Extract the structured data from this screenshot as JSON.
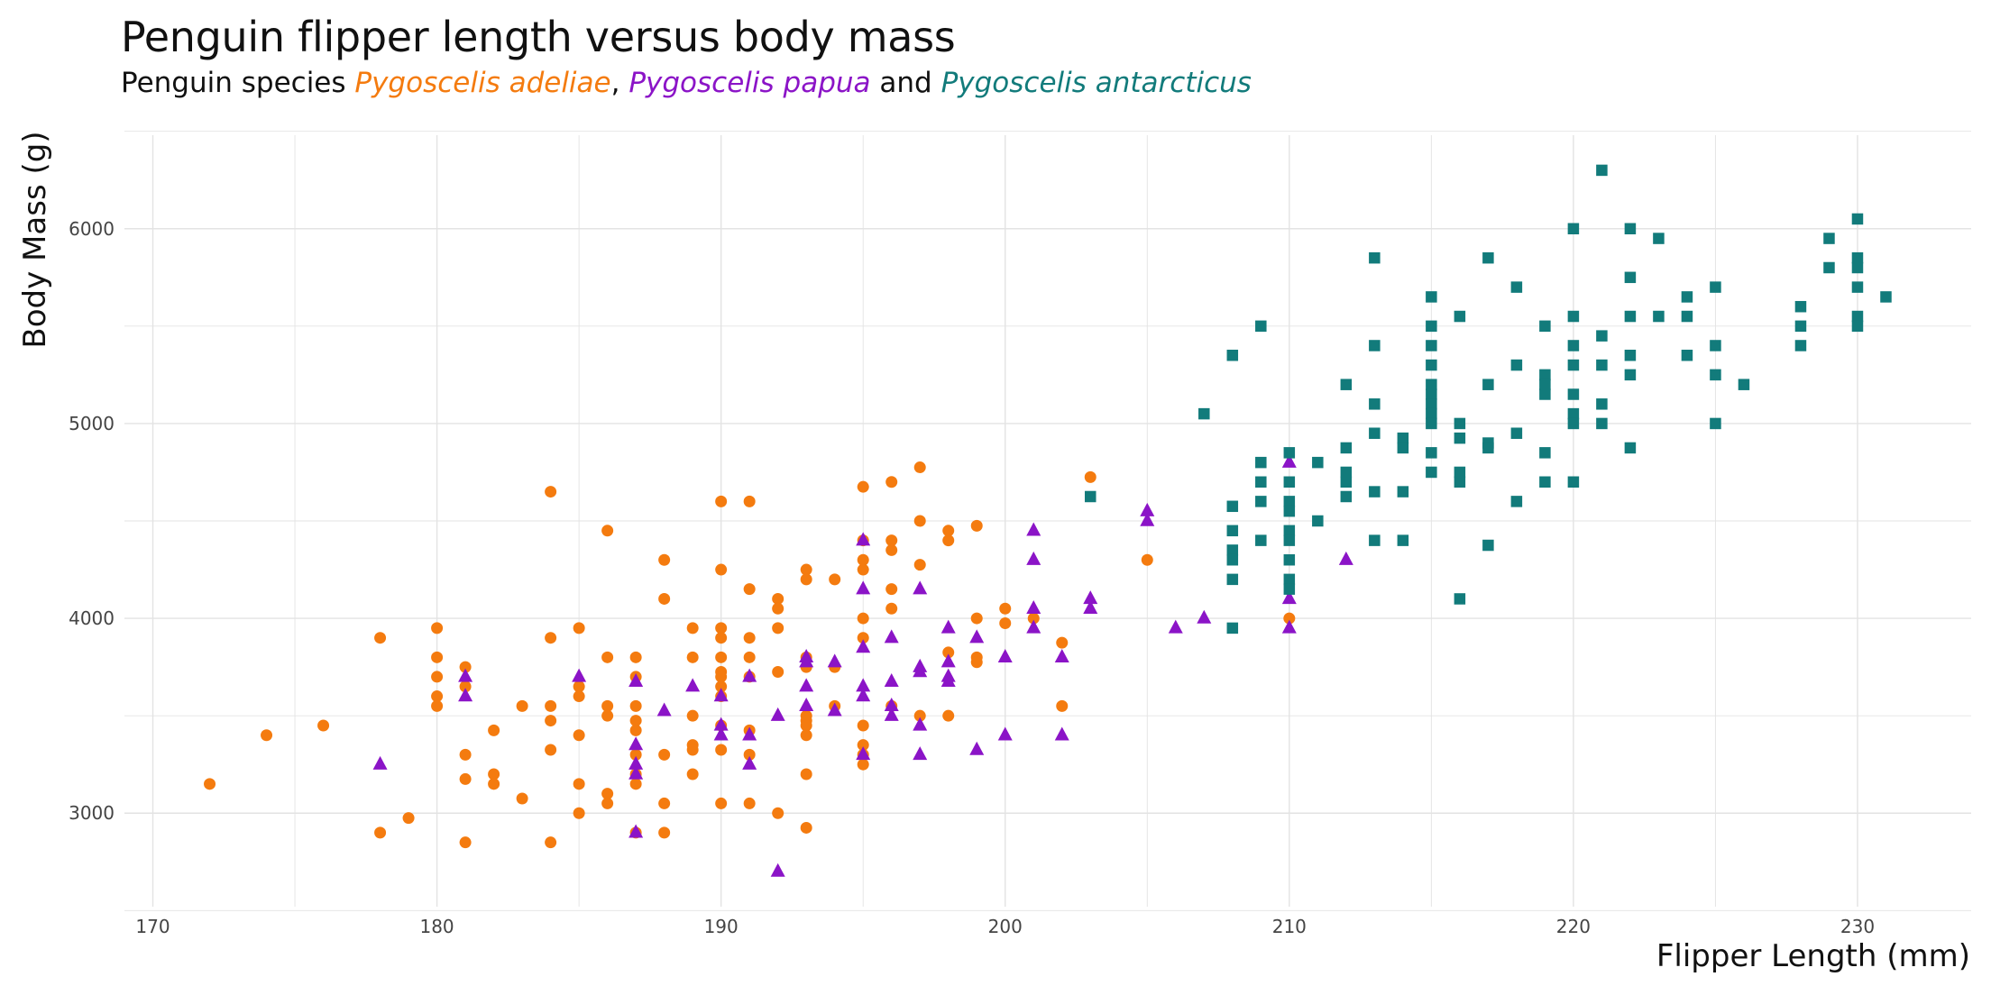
{
  "chart_data": {
    "type": "scatter",
    "title": "Penguin flipper length versus body mass",
    "subtitle": {
      "prefix": "Penguin species ",
      "species": [
        "Pygoscelis adeliae",
        "Pygoscelis papua",
        "Pygoscelis antarcticus"
      ],
      "sep1": ", ",
      "sep2": " and "
    },
    "xlabel": "Flipper Length (mm)",
    "ylabel": "Body Mass (g)",
    "xlim": [
      169,
      234
    ],
    "ylim": [
      2520,
      6480
    ],
    "x_ticks": [
      170,
      180,
      190,
      200,
      210,
      220,
      230
    ],
    "y_ticks": [
      3000,
      4000,
      5000,
      6000
    ],
    "grid": true,
    "legend": "none",
    "series": [
      {
        "marker": "circle",
        "color": "#F47B0F",
        "points": [
          [
            172,
            3150
          ],
          [
            174,
            3400
          ],
          [
            176,
            3450
          ],
          [
            178,
            3900
          ],
          [
            178,
            2900
          ],
          [
            179,
            2975
          ],
          [
            180,
            3950
          ],
          [
            180,
            3800
          ],
          [
            180,
            3700
          ],
          [
            180,
            3600
          ],
          [
            180,
            3550
          ],
          [
            181,
            3750
          ],
          [
            181,
            3650
          ],
          [
            181,
            3300
          ],
          [
            181,
            3175
          ],
          [
            181,
            2850
          ],
          [
            182,
            3425
          ],
          [
            182,
            3200
          ],
          [
            182,
            3150
          ],
          [
            183,
            3550
          ],
          [
            183,
            3075
          ],
          [
            184,
            4650
          ],
          [
            184,
            3900
          ],
          [
            184,
            3550
          ],
          [
            184,
            3475
          ],
          [
            184,
            3325
          ],
          [
            184,
            2850
          ],
          [
            185,
            3950
          ],
          [
            185,
            3650
          ],
          [
            185,
            3600
          ],
          [
            185,
            3400
          ],
          [
            185,
            3150
          ],
          [
            185,
            3000
          ],
          [
            186,
            4450
          ],
          [
            186,
            3800
          ],
          [
            186,
            3550
          ],
          [
            186,
            3500
          ],
          [
            186,
            3100
          ],
          [
            186,
            3050
          ],
          [
            187,
            3800
          ],
          [
            187,
            3700
          ],
          [
            187,
            3550
          ],
          [
            187,
            3475
          ],
          [
            187,
            3425
          ],
          [
            187,
            3300
          ],
          [
            187,
            3200
          ],
          [
            187,
            3150
          ],
          [
            187,
            2900
          ],
          [
            188,
            4300
          ],
          [
            188,
            4100
          ],
          [
            188,
            3300
          ],
          [
            188,
            3050
          ],
          [
            188,
            2900
          ],
          [
            189,
            3950
          ],
          [
            189,
            3800
          ],
          [
            189,
            3500
          ],
          [
            189,
            3350
          ],
          [
            189,
            3325
          ],
          [
            189,
            3200
          ],
          [
            190,
            4600
          ],
          [
            190,
            4250
          ],
          [
            190,
            3950
          ],
          [
            190,
            3900
          ],
          [
            190,
            3800
          ],
          [
            190,
            3725
          ],
          [
            190,
            3700
          ],
          [
            190,
            3650
          ],
          [
            190,
            3600
          ],
          [
            190,
            3450
          ],
          [
            190,
            3325
          ],
          [
            190,
            3050
          ],
          [
            191,
            4600
          ],
          [
            191,
            4150
          ],
          [
            191,
            3900
          ],
          [
            191,
            3800
          ],
          [
            191,
            3700
          ],
          [
            191,
            3425
          ],
          [
            191,
            3300
          ],
          [
            191,
            3050
          ],
          [
            192,
            4100
          ],
          [
            192,
            4050
          ],
          [
            192,
            3950
          ],
          [
            192,
            3725
          ],
          [
            192,
            3000
          ],
          [
            193,
            4250
          ],
          [
            193,
            4200
          ],
          [
            193,
            3800
          ],
          [
            193,
            3750
          ],
          [
            193,
            3500
          ],
          [
            193,
            3475
          ],
          [
            193,
            3450
          ],
          [
            193,
            3400
          ],
          [
            193,
            3200
          ],
          [
            193,
            2925
          ],
          [
            194,
            4200
          ],
          [
            194,
            3750
          ],
          [
            194,
            3550
          ],
          [
            195,
            4675
          ],
          [
            195,
            4400
          ],
          [
            195,
            4300
          ],
          [
            195,
            4250
          ],
          [
            195,
            4000
          ],
          [
            195,
            3900
          ],
          [
            195,
            3450
          ],
          [
            195,
            3350
          ],
          [
            195,
            3300
          ],
          [
            195,
            3250
          ],
          [
            196,
            4700
          ],
          [
            196,
            4400
          ],
          [
            196,
            4350
          ],
          [
            196,
            4150
          ],
          [
            196,
            4050
          ],
          [
            196,
            3550
          ],
          [
            197,
            4775
          ],
          [
            197,
            4500
          ],
          [
            197,
            4275
          ],
          [
            197,
            3500
          ],
          [
            198,
            4450
          ],
          [
            198,
            4400
          ],
          [
            198,
            3825
          ],
          [
            198,
            3500
          ],
          [
            199,
            4475
          ],
          [
            199,
            3800
          ],
          [
            199,
            3775
          ],
          [
            199,
            4000
          ],
          [
            200,
            4050
          ],
          [
            200,
            3975
          ],
          [
            201,
            4000
          ],
          [
            202,
            3875
          ],
          [
            202,
            3550
          ],
          [
            203,
            4725
          ],
          [
            205,
            4300
          ],
          [
            210,
            4000
          ]
        ]
      },
      {
        "marker": "triangle",
        "color": "#8B14C7",
        "points": [
          [
            178,
            3250
          ],
          [
            181,
            3700
          ],
          [
            181,
            3600
          ],
          [
            185,
            3700
          ],
          [
            187,
            3675
          ],
          [
            187,
            3350
          ],
          [
            187,
            3250
          ],
          [
            187,
            3200
          ],
          [
            187,
            2900
          ],
          [
            188,
            3525
          ],
          [
            189,
            3650
          ],
          [
            190,
            3600
          ],
          [
            190,
            3450
          ],
          [
            190,
            3400
          ],
          [
            191,
            3700
          ],
          [
            191,
            3400
          ],
          [
            191,
            3250
          ],
          [
            192,
            3500
          ],
          [
            192,
            2700
          ],
          [
            193,
            3800
          ],
          [
            193,
            3775
          ],
          [
            193,
            3650
          ],
          [
            193,
            3550
          ],
          [
            194,
            3775
          ],
          [
            194,
            3525
          ],
          [
            195,
            4400
          ],
          [
            195,
            4150
          ],
          [
            195,
            3850
          ],
          [
            195,
            3650
          ],
          [
            195,
            3600
          ],
          [
            195,
            3300
          ],
          [
            196,
            3900
          ],
          [
            196,
            3675
          ],
          [
            196,
            3550
          ],
          [
            196,
            3500
          ],
          [
            197,
            4150
          ],
          [
            197,
            3750
          ],
          [
            197,
            3725
          ],
          [
            197,
            3450
          ],
          [
            197,
            3300
          ],
          [
            198,
            3950
          ],
          [
            198,
            3775
          ],
          [
            198,
            3700
          ],
          [
            198,
            3675
          ],
          [
            199,
            3900
          ],
          [
            199,
            3325
          ],
          [
            200,
            3800
          ],
          [
            200,
            3400
          ],
          [
            201,
            4450
          ],
          [
            201,
            4300
          ],
          [
            201,
            4050
          ],
          [
            201,
            3950
          ],
          [
            202,
            3800
          ],
          [
            202,
            3400
          ],
          [
            203,
            4100
          ],
          [
            203,
            4050
          ],
          [
            205,
            4550
          ],
          [
            205,
            4500
          ],
          [
            206,
            3950
          ],
          [
            207,
            4000
          ],
          [
            210,
            4800
          ],
          [
            210,
            4100
          ],
          [
            210,
            3950
          ],
          [
            212,
            4300
          ]
        ]
      },
      {
        "marker": "square",
        "color": "#127B7B",
        "points": [
          [
            203,
            4625
          ],
          [
            207,
            5050
          ],
          [
            208,
            5350
          ],
          [
            208,
            4575
          ],
          [
            208,
            4450
          ],
          [
            208,
            4350
          ],
          [
            208,
            4300
          ],
          [
            208,
            4200
          ],
          [
            208,
            3950
          ],
          [
            209,
            5500
          ],
          [
            209,
            4800
          ],
          [
            209,
            4700
          ],
          [
            209,
            4600
          ],
          [
            209,
            4400
          ],
          [
            210,
            4850
          ],
          [
            210,
            4700
          ],
          [
            210,
            4600
          ],
          [
            210,
            4550
          ],
          [
            210,
            4450
          ],
          [
            210,
            4400
          ],
          [
            210,
            4300
          ],
          [
            210,
            4200
          ],
          [
            210,
            4150
          ],
          [
            211,
            4800
          ],
          [
            211,
            4500
          ],
          [
            212,
            5200
          ],
          [
            212,
            4875
          ],
          [
            212,
            4750
          ],
          [
            212,
            4700
          ],
          [
            212,
            4625
          ],
          [
            213,
            5850
          ],
          [
            213,
            5400
          ],
          [
            213,
            5100
          ],
          [
            213,
            4950
          ],
          [
            213,
            4650
          ],
          [
            213,
            4400
          ],
          [
            214,
            4925
          ],
          [
            214,
            4875
          ],
          [
            214,
            4650
          ],
          [
            214,
            4400
          ],
          [
            215,
            5650
          ],
          [
            215,
            5500
          ],
          [
            215,
            5400
          ],
          [
            215,
            5300
          ],
          [
            215,
            5200
          ],
          [
            215,
            5150
          ],
          [
            215,
            5100
          ],
          [
            215,
            5050
          ],
          [
            215,
            5000
          ],
          [
            215,
            4850
          ],
          [
            215,
            4750
          ],
          [
            216,
            5550
          ],
          [
            216,
            5000
          ],
          [
            216,
            4925
          ],
          [
            216,
            4750
          ],
          [
            216,
            4700
          ],
          [
            216,
            4100
          ],
          [
            217,
            5850
          ],
          [
            217,
            5200
          ],
          [
            217,
            4900
          ],
          [
            217,
            4875
          ],
          [
            217,
            4375
          ],
          [
            218,
            5700
          ],
          [
            218,
            5300
          ],
          [
            218,
            4950
          ],
          [
            218,
            4600
          ],
          [
            219,
            5500
          ],
          [
            219,
            5250
          ],
          [
            219,
            5200
          ],
          [
            219,
            5150
          ],
          [
            219,
            4850
          ],
          [
            219,
            4700
          ],
          [
            220,
            6000
          ],
          [
            220,
            5550
          ],
          [
            220,
            5400
          ],
          [
            220,
            5300
          ],
          [
            220,
            5150
          ],
          [
            220,
            5050
          ],
          [
            220,
            5000
          ],
          [
            220,
            4700
          ],
          [
            221,
            6300
          ],
          [
            221,
            5450
          ],
          [
            221,
            5300
          ],
          [
            221,
            5100
          ],
          [
            221,
            5000
          ],
          [
            222,
            6000
          ],
          [
            222,
            5750
          ],
          [
            222,
            5550
          ],
          [
            222,
            5350
          ],
          [
            222,
            5250
          ],
          [
            222,
            4875
          ],
          [
            223,
            5950
          ],
          [
            223,
            5550
          ],
          [
            224,
            5650
          ],
          [
            224,
            5550
          ],
          [
            224,
            5350
          ],
          [
            225,
            5700
          ],
          [
            225,
            5400
          ],
          [
            225,
            5250
          ],
          [
            225,
            5000
          ],
          [
            226,
            5200
          ],
          [
            228,
            5600
          ],
          [
            228,
            5500
          ],
          [
            228,
            5400
          ],
          [
            229,
            5950
          ],
          [
            229,
            5800
          ],
          [
            230,
            6050
          ],
          [
            230,
            5850
          ],
          [
            230,
            5800
          ],
          [
            230,
            5700
          ],
          [
            230,
            5550
          ],
          [
            230,
            5500
          ],
          [
            231,
            5650
          ]
        ]
      }
    ]
  },
  "colors": {
    "adeliae": "#F47B0F",
    "papua": "#8B14C7",
    "antarcticus": "#127B7B",
    "grid": "#E3E3E3"
  }
}
